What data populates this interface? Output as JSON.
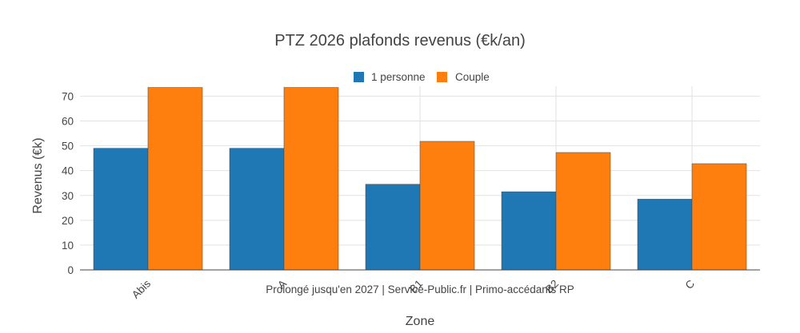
{
  "chart_data": {
    "type": "bar",
    "title": "PTZ 2026 plafonds revenus (€k/an)",
    "xlabel": "Zone",
    "ylabel": "Revenus (€k)",
    "categories": [
      "Abis",
      "A",
      "B1",
      "B2",
      "C"
    ],
    "series": [
      {
        "name": "1 personne",
        "color": "#1f77b4",
        "values": [
          49,
          49,
          34.5,
          31.5,
          28.5
        ]
      },
      {
        "name": "Couple",
        "color": "#ff7f0e",
        "values": [
          73.5,
          73.5,
          51.8,
          47.3,
          42.8
        ]
      }
    ],
    "ylim": [
      0,
      74
    ],
    "yticks": [
      0,
      10,
      20,
      30,
      40,
      50,
      60,
      70
    ],
    "grid": true,
    "legend": "top-center",
    "annotation": "Prolongé jusqu'en 2027 | Service-Public.fr | Primo-accédants RP"
  }
}
